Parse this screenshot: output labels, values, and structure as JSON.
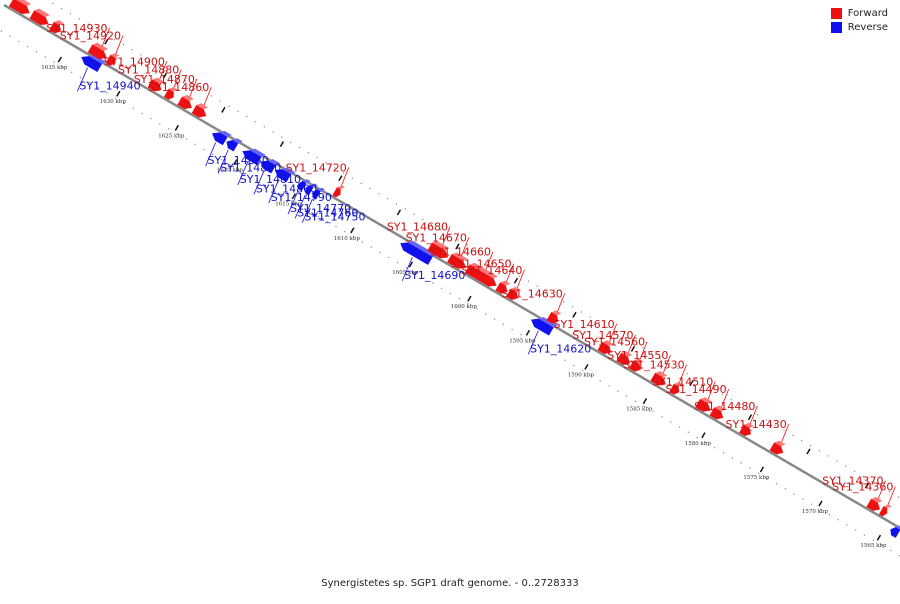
{
  "legend": {
    "forward_label": "Forward",
    "reverse_label": "Reverse",
    "forward_color": "#ee1111",
    "reverse_color": "#1111ee"
  },
  "caption": "Synergistetes sp. SGP1 draft genome. - 0..2728333",
  "colors": {
    "forward": "#ee1111",
    "forward_light": "#ff7777",
    "reverse": "#1111ee",
    "reverse_light": "#6666ff",
    "axis": "#888888"
  },
  "ticks": [
    "1635 kbp",
    "1630 kbp",
    "1625 kbp",
    "1620 kbp",
    "1615 kbp",
    "1610 kbp",
    "1605 kbp",
    "1600 kbp",
    "1595 kbp",
    "1590 kbp",
    "1585 kbp",
    "1580 kbp",
    "1575 kbp",
    "1570 kbp",
    "1565 kbp"
  ],
  "genes": [
    {
      "name": "",
      "strand": "forward",
      "t": 0.005,
      "len": 0.02
    },
    {
      "name": "",
      "strand": "forward",
      "t": 0.028,
      "len": 0.018
    },
    {
      "name": "",
      "strand": "forward",
      "t": 0.05,
      "len": 0.01
    },
    {
      "name": "SY1_14940",
      "strand": "reverse",
      "t": 0.09,
      "len": 0.02
    },
    {
      "name": "SY1_14930",
      "strand": "forward",
      "t": 0.093,
      "len": 0.018
    },
    {
      "name": "SY1_14920",
      "strand": "forward",
      "t": 0.113,
      "len": 0.008
    },
    {
      "name": "SY1_14900",
      "strand": "forward",
      "t": 0.16,
      "len": 0.012
    },
    {
      "name": "SY1_14880",
      "strand": "forward",
      "t": 0.178,
      "len": 0.008
    },
    {
      "name": "SY1_14870",
      "strand": "forward",
      "t": 0.193,
      "len": 0.013
    },
    {
      "name": "SY1_14860",
      "strand": "forward",
      "t": 0.209,
      "len": 0.013
    },
    {
      "name": "SY1_14850",
      "strand": "reverse",
      "t": 0.236,
      "len": 0.014
    },
    {
      "name": "SY1_14840",
      "strand": "reverse",
      "t": 0.252,
      "len": 0.01
    },
    {
      "name": "SY1_14810",
      "strand": "reverse",
      "t": 0.27,
      "len": 0.018
    },
    {
      "name": "SY1_14800",
      "strand": "reverse",
      "t": 0.29,
      "len": 0.014
    },
    {
      "name": "SY1_14790",
      "strand": "reverse",
      "t": 0.306,
      "len": 0.015
    },
    {
      "name": "SY1_14770",
      "strand": "reverse",
      "t": 0.332,
      "len": 0.006
    },
    {
      "name": "SY1_14760",
      "strand": "reverse",
      "t": 0.34,
      "len": 0.006
    },
    {
      "name": "SY1_14750",
      "strand": "reverse",
      "t": 0.348,
      "len": 0.006
    },
    {
      "name": "SY1_14720",
      "strand": "forward",
      "t": 0.366,
      "len": 0.006
    },
    {
      "name": "SY1_14690",
      "strand": "reverse",
      "t": 0.446,
      "len": 0.033
    },
    {
      "name": "SY1_14680",
      "strand": "forward",
      "t": 0.472,
      "len": 0.02
    },
    {
      "name": "SY1_14670",
      "strand": "forward",
      "t": 0.494,
      "len": 0.018
    },
    {
      "name": "SY1_14660",
      "strand": "forward",
      "t": 0.514,
      "len": 0.032
    },
    {
      "name": "SY1_14650",
      "strand": "forward",
      "t": 0.548,
      "len": 0.01
    },
    {
      "name": "SY1_14640",
      "strand": "forward",
      "t": 0.56,
      "len": 0.01
    },
    {
      "name": "SY1_14620",
      "strand": "reverse",
      "t": 0.592,
      "len": 0.022
    },
    {
      "name": "SY1_14630",
      "strand": "forward",
      "t": 0.605,
      "len": 0.01
    },
    {
      "name": "SY1_14610",
      "strand": "forward",
      "t": 0.662,
      "len": 0.012
    },
    {
      "name": "SY1_14570",
      "strand": "forward",
      "t": 0.683,
      "len": 0.012
    },
    {
      "name": "SY1_14560",
      "strand": "forward",
      "t": 0.697,
      "len": 0.01
    },
    {
      "name": "SY1_14550",
      "strand": "forward",
      "t": 0.721,
      "len": 0.014
    },
    {
      "name": "SY1_14530",
      "strand": "forward",
      "t": 0.742,
      "len": 0.008
    },
    {
      "name": "SY1_14510",
      "strand": "forward",
      "t": 0.771,
      "len": 0.014
    },
    {
      "name": "SY1_14490",
      "strand": "forward",
      "t": 0.787,
      "len": 0.012
    },
    {
      "name": "SY1_14480",
      "strand": "forward",
      "t": 0.82,
      "len": 0.01
    },
    {
      "name": "SY1_14430",
      "strand": "forward",
      "t": 0.854,
      "len": 0.012
    },
    {
      "name": "SY1_14370",
      "strand": "forward",
      "t": 0.962,
      "len": 0.012
    },
    {
      "name": "SY1_14360",
      "strand": "forward",
      "t": 0.976,
      "len": 0.006
    },
    {
      "name": "",
      "strand": "reverse",
      "t": 0.993,
      "len": 0.008
    }
  ]
}
